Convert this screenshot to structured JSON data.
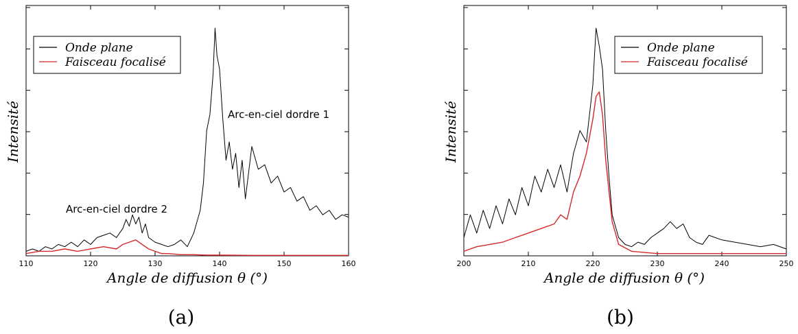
{
  "chart_data": [
    {
      "type": "line",
      "panel_caption": "(a)",
      "xlabel": "Angle de diffusion θ (°)",
      "ylabel": "Intensité",
      "xlim": [
        110,
        160
      ],
      "ylim": [
        0,
        1
      ],
      "xticks": [
        110,
        120,
        130,
        140,
        150,
        160
      ],
      "xtick_labels": [
        "110",
        "120",
        "130",
        "140",
        "150",
        "160"
      ],
      "yticks_count": 6,
      "legend_position": "top-left",
      "annotations": [
        {
          "text": "Arc-en-ciel dordre 1",
          "x": 146,
          "y": 0.61
        },
        {
          "text": "Arc-en-ciel dordre 2",
          "x": 116.0,
          "y": 0.21
        }
      ],
      "series": [
        {
          "name": "Onde plane",
          "color": "#000000",
          "x": [
            110,
            111,
            112,
            113,
            114,
            115,
            116,
            117,
            118,
            119,
            120,
            121,
            122,
            123,
            124,
            125,
            125.5,
            126,
            126.5,
            127,
            127.5,
            128,
            128.5,
            129,
            130,
            131,
            132,
            133,
            134,
            135,
            136,
            137,
            137.5,
            138,
            138.5,
            139,
            139.3,
            139.6,
            140,
            140.5,
            141,
            141.5,
            142,
            142.5,
            143,
            143.5,
            144,
            145,
            146,
            147,
            148,
            149,
            150,
            151,
            152,
            153,
            154,
            155,
            156,
            157,
            158,
            159,
            160
          ],
          "y": [
            0.02,
            0.03,
            0.02,
            0.04,
            0.03,
            0.05,
            0.04,
            0.06,
            0.04,
            0.07,
            0.05,
            0.08,
            0.09,
            0.1,
            0.08,
            0.12,
            0.16,
            0.13,
            0.18,
            0.14,
            0.17,
            0.1,
            0.14,
            0.08,
            0.06,
            0.05,
            0.04,
            0.05,
            0.07,
            0.04,
            0.1,
            0.2,
            0.32,
            0.55,
            0.62,
            0.8,
            1.0,
            0.88,
            0.82,
            0.6,
            0.42,
            0.5,
            0.38,
            0.45,
            0.3,
            0.42,
            0.25,
            0.48,
            0.38,
            0.4,
            0.32,
            0.35,
            0.28,
            0.3,
            0.24,
            0.26,
            0.2,
            0.22,
            0.18,
            0.2,
            0.16,
            0.18,
            0.17
          ]
        },
        {
          "name": "Faisceau focalisé",
          "color": "#d62728",
          "x": [
            110,
            112,
            114,
            116,
            118,
            120,
            122,
            124,
            125,
            126,
            127,
            128,
            129,
            130,
            131,
            132,
            134,
            136,
            138,
            140,
            145,
            150,
            155,
            160
          ],
          "y": [
            0.01,
            0.02,
            0.02,
            0.03,
            0.02,
            0.03,
            0.04,
            0.03,
            0.05,
            0.06,
            0.07,
            0.05,
            0.03,
            0.02,
            0.01,
            0.01,
            0.005,
            0.005,
            0.003,
            0.003,
            0.002,
            0.002,
            0.002,
            0.002
          ]
        }
      ]
    },
    {
      "type": "line",
      "panel_caption": "(b)",
      "xlabel": "Angle de diffusion θ (°)",
      "ylabel": "Intensité",
      "xlim": [
        200,
        250
      ],
      "ylim": [
        0,
        1
      ],
      "xticks": [
        200,
        210,
        220,
        230,
        240,
        250
      ],
      "xtick_labels": [
        "200",
        "210",
        "220",
        "230",
        "240",
        "250"
      ],
      "yticks_count": 6,
      "legend_position": "top-right",
      "series": [
        {
          "name": "Onde plane",
          "color": "#000000",
          "x": [
            200,
            201,
            202,
            203,
            204,
            205,
            206,
            207,
            208,
            209,
            210,
            211,
            212,
            213,
            214,
            215,
            216,
            217,
            218,
            219,
            220,
            220.5,
            221,
            221.5,
            222,
            222.5,
            223,
            224,
            225,
            226,
            227,
            228,
            229,
            230,
            231,
            232,
            233,
            234,
            235,
            236,
            237,
            238,
            240,
            242,
            244,
            246,
            248,
            250
          ],
          "y": [
            0.08,
            0.18,
            0.1,
            0.2,
            0.12,
            0.22,
            0.14,
            0.25,
            0.18,
            0.3,
            0.22,
            0.35,
            0.28,
            0.38,
            0.3,
            0.4,
            0.28,
            0.45,
            0.55,
            0.5,
            0.75,
            1.0,
            0.92,
            0.82,
            0.55,
            0.35,
            0.18,
            0.08,
            0.05,
            0.04,
            0.06,
            0.05,
            0.08,
            0.1,
            0.12,
            0.15,
            0.12,
            0.14,
            0.08,
            0.06,
            0.05,
            0.09,
            0.07,
            0.06,
            0.05,
            0.04,
            0.05,
            0.03
          ]
        },
        {
          "name": "Faisceau focalisé",
          "color": "#d62728",
          "x": [
            200,
            202,
            204,
            206,
            208,
            210,
            212,
            214,
            215,
            216,
            217,
            218,
            219,
            220,
            220.5,
            221,
            221.5,
            222,
            223,
            224,
            226,
            230,
            240,
            250
          ],
          "y": [
            0.02,
            0.04,
            0.05,
            0.06,
            0.08,
            0.1,
            0.12,
            0.14,
            0.18,
            0.16,
            0.28,
            0.35,
            0.45,
            0.6,
            0.7,
            0.72,
            0.62,
            0.42,
            0.15,
            0.05,
            0.02,
            0.01,
            0.01,
            0.01
          ]
        }
      ]
    }
  ]
}
